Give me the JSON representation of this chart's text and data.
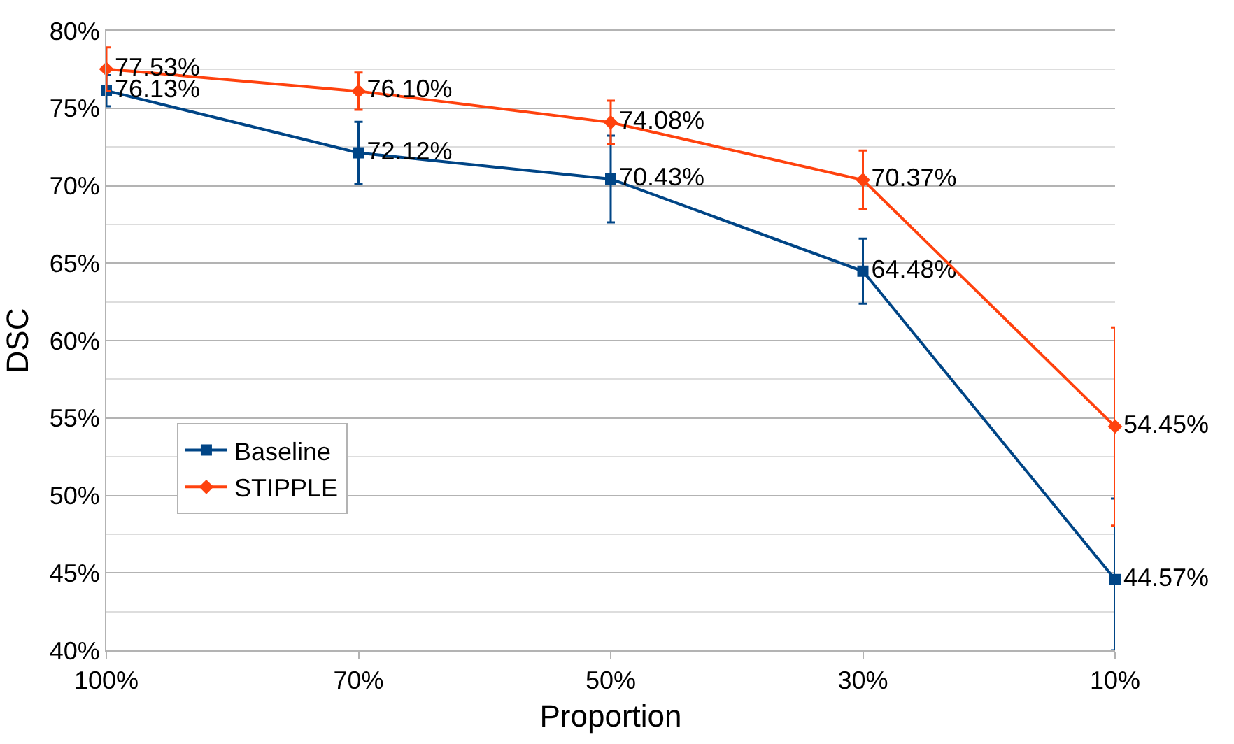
{
  "chart_data": {
    "type": "line",
    "xlabel": "Proportion",
    "ylabel": "DSC",
    "categories": [
      "100%",
      "70%",
      "50%",
      "30%",
      "10%"
    ],
    "series": [
      {
        "name": "Baseline",
        "color": "#004586",
        "marker": "square",
        "values": [
          76.13,
          72.12,
          70.43,
          64.48,
          44.57
        ],
        "errors": [
          1.0,
          2.0,
          2.8,
          2.1,
          [
            40,
            49.8
          ]
        ],
        "value_labels": [
          "76.13%",
          "72.12%",
          "70.43%",
          "64.48%",
          "44.57%"
        ]
      },
      {
        "name": "STIPPLE",
        "color": "#ff420e",
        "marker": "diamond",
        "values": [
          77.53,
          76.1,
          74.08,
          70.37,
          54.45
        ],
        "errors": [
          1.4,
          1.2,
          1.4,
          1.9,
          6.4
        ],
        "value_labels": [
          "77.53%",
          "76.10%",
          "74.08%",
          "70.37%",
          "54.45%"
        ]
      }
    ],
    "ylim": [
      40,
      80
    ],
    "yticks": [
      {
        "value": 40,
        "label": "40%"
      },
      {
        "value": 45,
        "label": "45%"
      },
      {
        "value": 50,
        "label": "50%"
      },
      {
        "value": 55,
        "label": "55%"
      },
      {
        "value": 60,
        "label": "60%"
      },
      {
        "value": 65,
        "label": "65%"
      },
      {
        "value": 70,
        "label": "70%"
      },
      {
        "value": 75,
        "label": "75%"
      },
      {
        "value": 80,
        "label": "80%"
      }
    ],
    "grid": "y",
    "legend": "bottom left",
    "line_style": "solid"
  }
}
